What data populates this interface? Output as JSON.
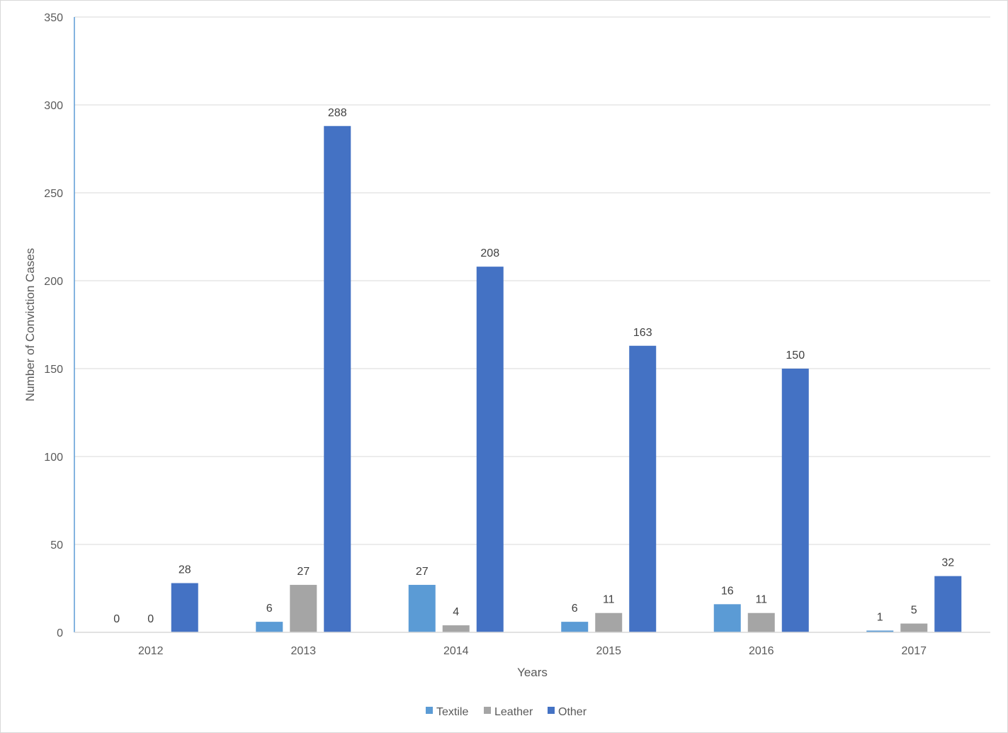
{
  "chart_data": {
    "type": "bar",
    "title": "",
    "xlabel": "Years",
    "ylabel": "Number of Conviction Cases",
    "categories": [
      "2012",
      "2013",
      "2014",
      "2015",
      "2016",
      "2017"
    ],
    "series": [
      {
        "name": "Textile",
        "color": "#5B9BD5",
        "values": [
          0,
          6,
          27,
          6,
          16,
          1
        ]
      },
      {
        "name": "Leather",
        "color": "#A5A5A5",
        "values": [
          0,
          27,
          4,
          11,
          11,
          5
        ]
      },
      {
        "name": "Other",
        "color": "#4472C4",
        "values": [
          28,
          288,
          208,
          163,
          150,
          32
        ]
      }
    ],
    "ylim": [
      0,
      350
    ],
    "yticks": [
      0,
      50,
      100,
      150,
      200,
      250,
      300,
      350
    ],
    "grid": true,
    "legend": "bottom",
    "data_labels": true
  }
}
